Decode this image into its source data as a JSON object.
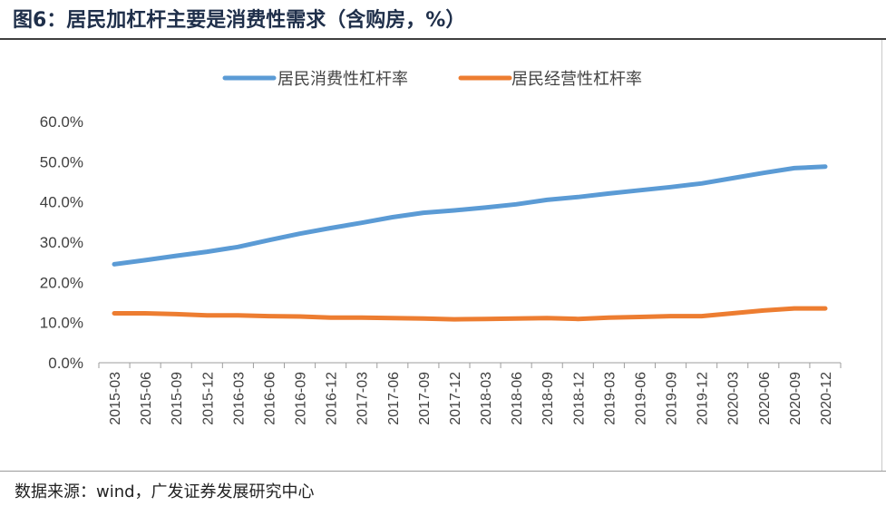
{
  "title": "图6：居民加杠杆主要是消费性需求（含购房，%）",
  "source": "数据来源：wind，广发证券发展研究中心",
  "chart_data": {
    "type": "line",
    "categories": [
      "2015-03",
      "2015-06",
      "2015-09",
      "2015-12",
      "2016-03",
      "2016-06",
      "2016-09",
      "2016-12",
      "2017-03",
      "2017-06",
      "2017-09",
      "2017-12",
      "2018-03",
      "2018-06",
      "2018-09",
      "2018-12",
      "2019-03",
      "2019-06",
      "2019-09",
      "2019-12",
      "2020-03",
      "2020-06",
      "2020-09",
      "2020-12"
    ],
    "series": [
      {
        "name": "居民消费性杠杆率",
        "color": "#5b9bd5",
        "values": [
          24.5,
          25.5,
          26.6,
          27.6,
          28.8,
          30.5,
          32.1,
          33.5,
          34.8,
          36.2,
          37.3,
          37.9,
          38.6,
          39.4,
          40.5,
          41.2,
          42.1,
          42.9,
          43.7,
          44.6,
          45.9,
          47.2,
          48.4,
          48.8
        ]
      },
      {
        "name": "居民经营性杠杆率",
        "color": "#ed7d31",
        "values": [
          12.3,
          12.3,
          12.1,
          11.8,
          11.8,
          11.6,
          11.5,
          11.2,
          11.2,
          11.1,
          11.0,
          10.8,
          10.9,
          11.0,
          11.1,
          10.9,
          11.2,
          11.4,
          11.6,
          11.6,
          12.3,
          13.0,
          13.5,
          13.5
        ]
      }
    ],
    "yticks": [
      "0.0%",
      "10.0%",
      "20.0%",
      "30.0%",
      "40.0%",
      "50.0%",
      "60.0%"
    ],
    "ylim": [
      0,
      60
    ],
    "xlabel": "",
    "ylabel": "",
    "legend": "top-center",
    "grid": false
  }
}
